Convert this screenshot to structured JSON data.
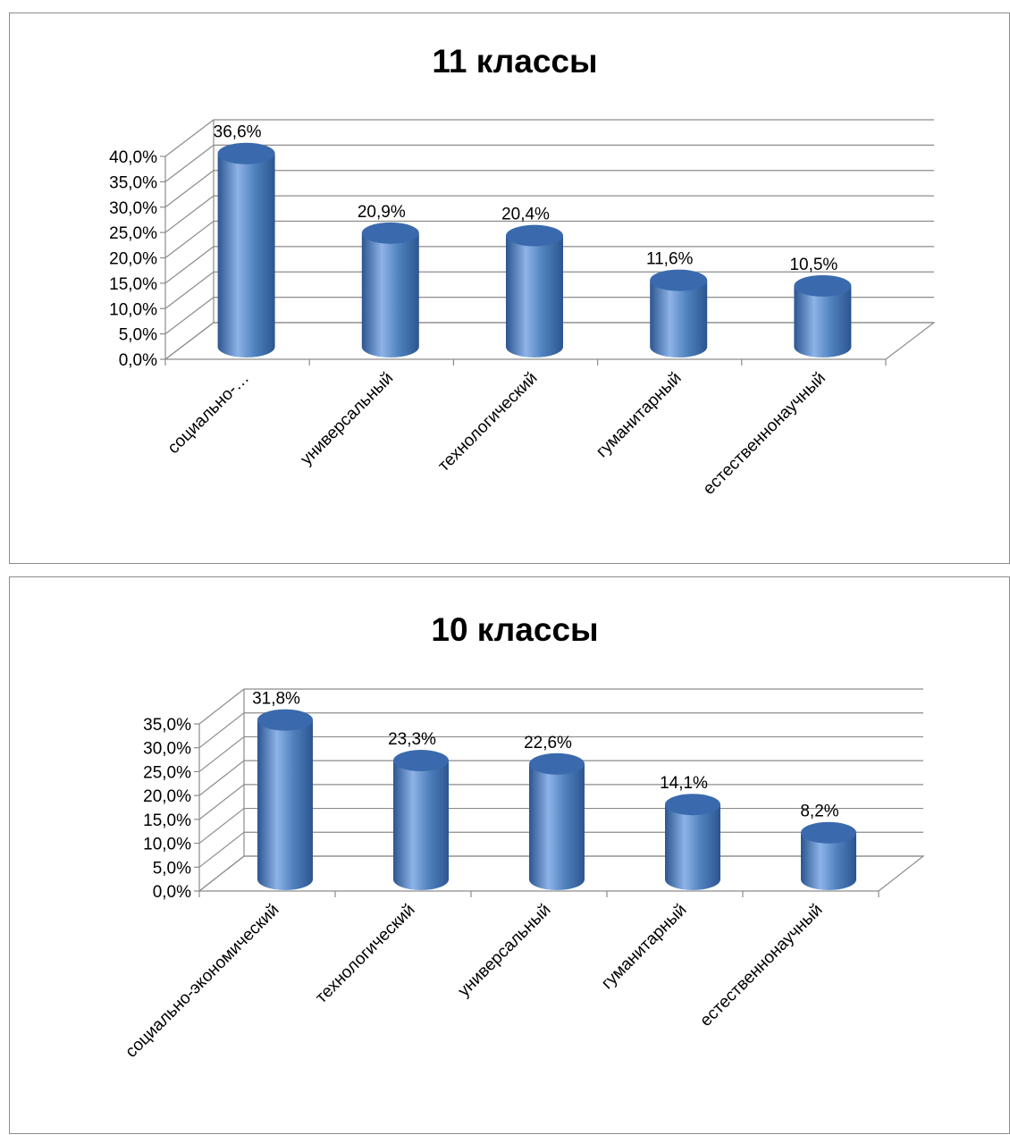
{
  "colors": {
    "bar_light": "#8db3e8",
    "bar_mid": "#4f81bd",
    "bar_dark": "#2c5590",
    "bar_top": "#3a6aad",
    "grid": "#8c8c8c"
  },
  "chart_data": [
    {
      "type": "bar",
      "style": "3d-cylinder",
      "title": "11 классы",
      "categories": [
        "социально-…",
        "универсальный",
        "технологический",
        "гуманитарный",
        "естественнонаучный"
      ],
      "values": [
        36.6,
        20.9,
        20.4,
        11.6,
        10.5
      ],
      "data_labels": [
        "36,6%",
        "20,9%",
        "20,4%",
        "11,6%",
        "10,5%"
      ],
      "ylim": [
        0,
        40
      ],
      "yticks": [
        0,
        5,
        10,
        15,
        20,
        25,
        30,
        35,
        40
      ],
      "ytick_labels": [
        "0,0%",
        "5,0%",
        "10,0%",
        "15,0%",
        "20,0%",
        "25,0%",
        "30,0%",
        "35,0%",
        "40,0%"
      ],
      "grid": true,
      "legend": "none"
    },
    {
      "type": "bar",
      "style": "3d-cylinder",
      "title": "10 классы",
      "categories": [
        "социально-экономический",
        "технологический",
        "универсальный",
        "гуманитарный",
        "естественнонаучный"
      ],
      "values": [
        31.8,
        23.3,
        22.6,
        14.1,
        8.2
      ],
      "data_labels": [
        "31,8%",
        "23,3%",
        "22,6%",
        "14,1%",
        "8,2%"
      ],
      "ylim": [
        0,
        35
      ],
      "yticks": [
        0,
        5,
        10,
        15,
        20,
        25,
        30,
        35
      ],
      "ytick_labels": [
        "0,0%",
        "5,0%",
        "10,0%",
        "15,0%",
        "20,0%",
        "25,0%",
        "30,0%",
        "35,0%"
      ],
      "grid": true,
      "legend": "none"
    }
  ]
}
